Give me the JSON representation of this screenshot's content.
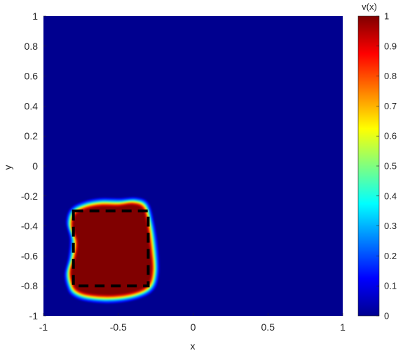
{
  "chart_data": {
    "type": "heatmap",
    "title": "",
    "xlabel": "x",
    "ylabel": "y",
    "xlim": [
      -1,
      1
    ],
    "ylim": [
      -1,
      1
    ],
    "x_ticks": [
      "-1",
      "-0.5",
      "0",
      "0.5",
      "1"
    ],
    "y_ticks": [
      "1",
      "0.8",
      "0.6",
      "0.4",
      "0.2",
      "0",
      "-0.2",
      "-0.4",
      "-0.6",
      "-0.8",
      "-1"
    ],
    "colorbar": {
      "label": "v(x)",
      "range": [
        0,
        1
      ],
      "ticks": [
        "1",
        "0.9",
        "0.8",
        "0.7",
        "0.6",
        "0.5",
        "0.4",
        "0.3",
        "0.2",
        "0.1",
        "0"
      ],
      "colormap": "jet"
    },
    "background_value": 0,
    "region": {
      "value": 1,
      "description_points": [
        [
          -0.78,
          -0.83
        ],
        [
          -0.7,
          -0.86
        ],
        [
          -0.55,
          -0.87
        ],
        [
          -0.4,
          -0.85
        ],
        [
          -0.3,
          -0.8
        ],
        [
          -0.27,
          -0.7
        ],
        [
          -0.28,
          -0.55
        ],
        [
          -0.3,
          -0.4
        ],
        [
          -0.33,
          -0.28
        ],
        [
          -0.4,
          -0.25
        ],
        [
          -0.5,
          -0.26
        ],
        [
          -0.62,
          -0.26
        ],
        [
          -0.72,
          -0.28
        ],
        [
          -0.79,
          -0.32
        ],
        [
          -0.81,
          -0.4
        ],
        [
          -0.78,
          -0.5
        ],
        [
          -0.79,
          -0.6
        ],
        [
          -0.82,
          -0.7
        ],
        [
          -0.81,
          -0.78
        ]
      ]
    },
    "dashed_square": {
      "x": [
        -0.8,
        -0.3
      ],
      "y": [
        -0.8,
        -0.3
      ],
      "color": "#000000",
      "style": "dashed"
    },
    "grid": false
  }
}
